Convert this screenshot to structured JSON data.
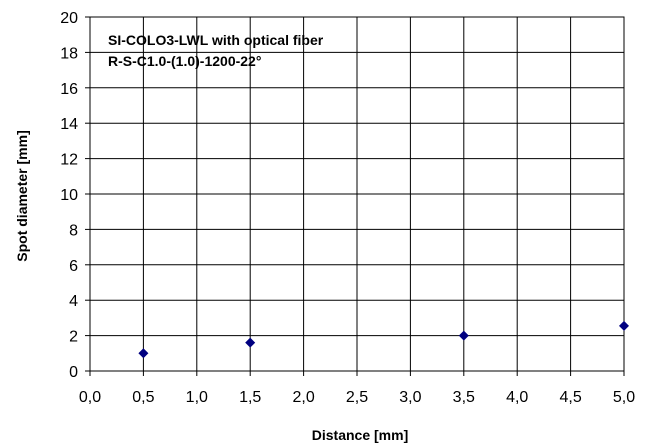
{
  "chart_data": {
    "type": "scatter",
    "xlabel": "Distance [mm]",
    "ylabel": "Spot diameter [mm]",
    "xlim": [
      0.0,
      5.0
    ],
    "ylim": [
      0,
      20
    ],
    "x_ticks": [
      "0,0",
      "0,5",
      "1,0",
      "1,5",
      "2,0",
      "2,5",
      "3,0",
      "3,5",
      "4,0",
      "4,5",
      "5,0"
    ],
    "y_ticks": [
      "0",
      "2",
      "4",
      "6",
      "8",
      "10",
      "12",
      "14",
      "16",
      "18",
      "20"
    ],
    "grid": true,
    "annotation_lines": [
      "SI-COLO3-LWL with optical fiber",
      "R-S-C1.0-(1.0)-1200-22°"
    ],
    "series": [
      {
        "marker": "diamond",
        "color": "#000080",
        "points": [
          {
            "x": 0.5,
            "y": 1.0
          },
          {
            "x": 1.5,
            "y": 1.6
          },
          {
            "x": 3.5,
            "y": 2.0
          },
          {
            "x": 5.0,
            "y": 2.55
          }
        ]
      }
    ]
  }
}
